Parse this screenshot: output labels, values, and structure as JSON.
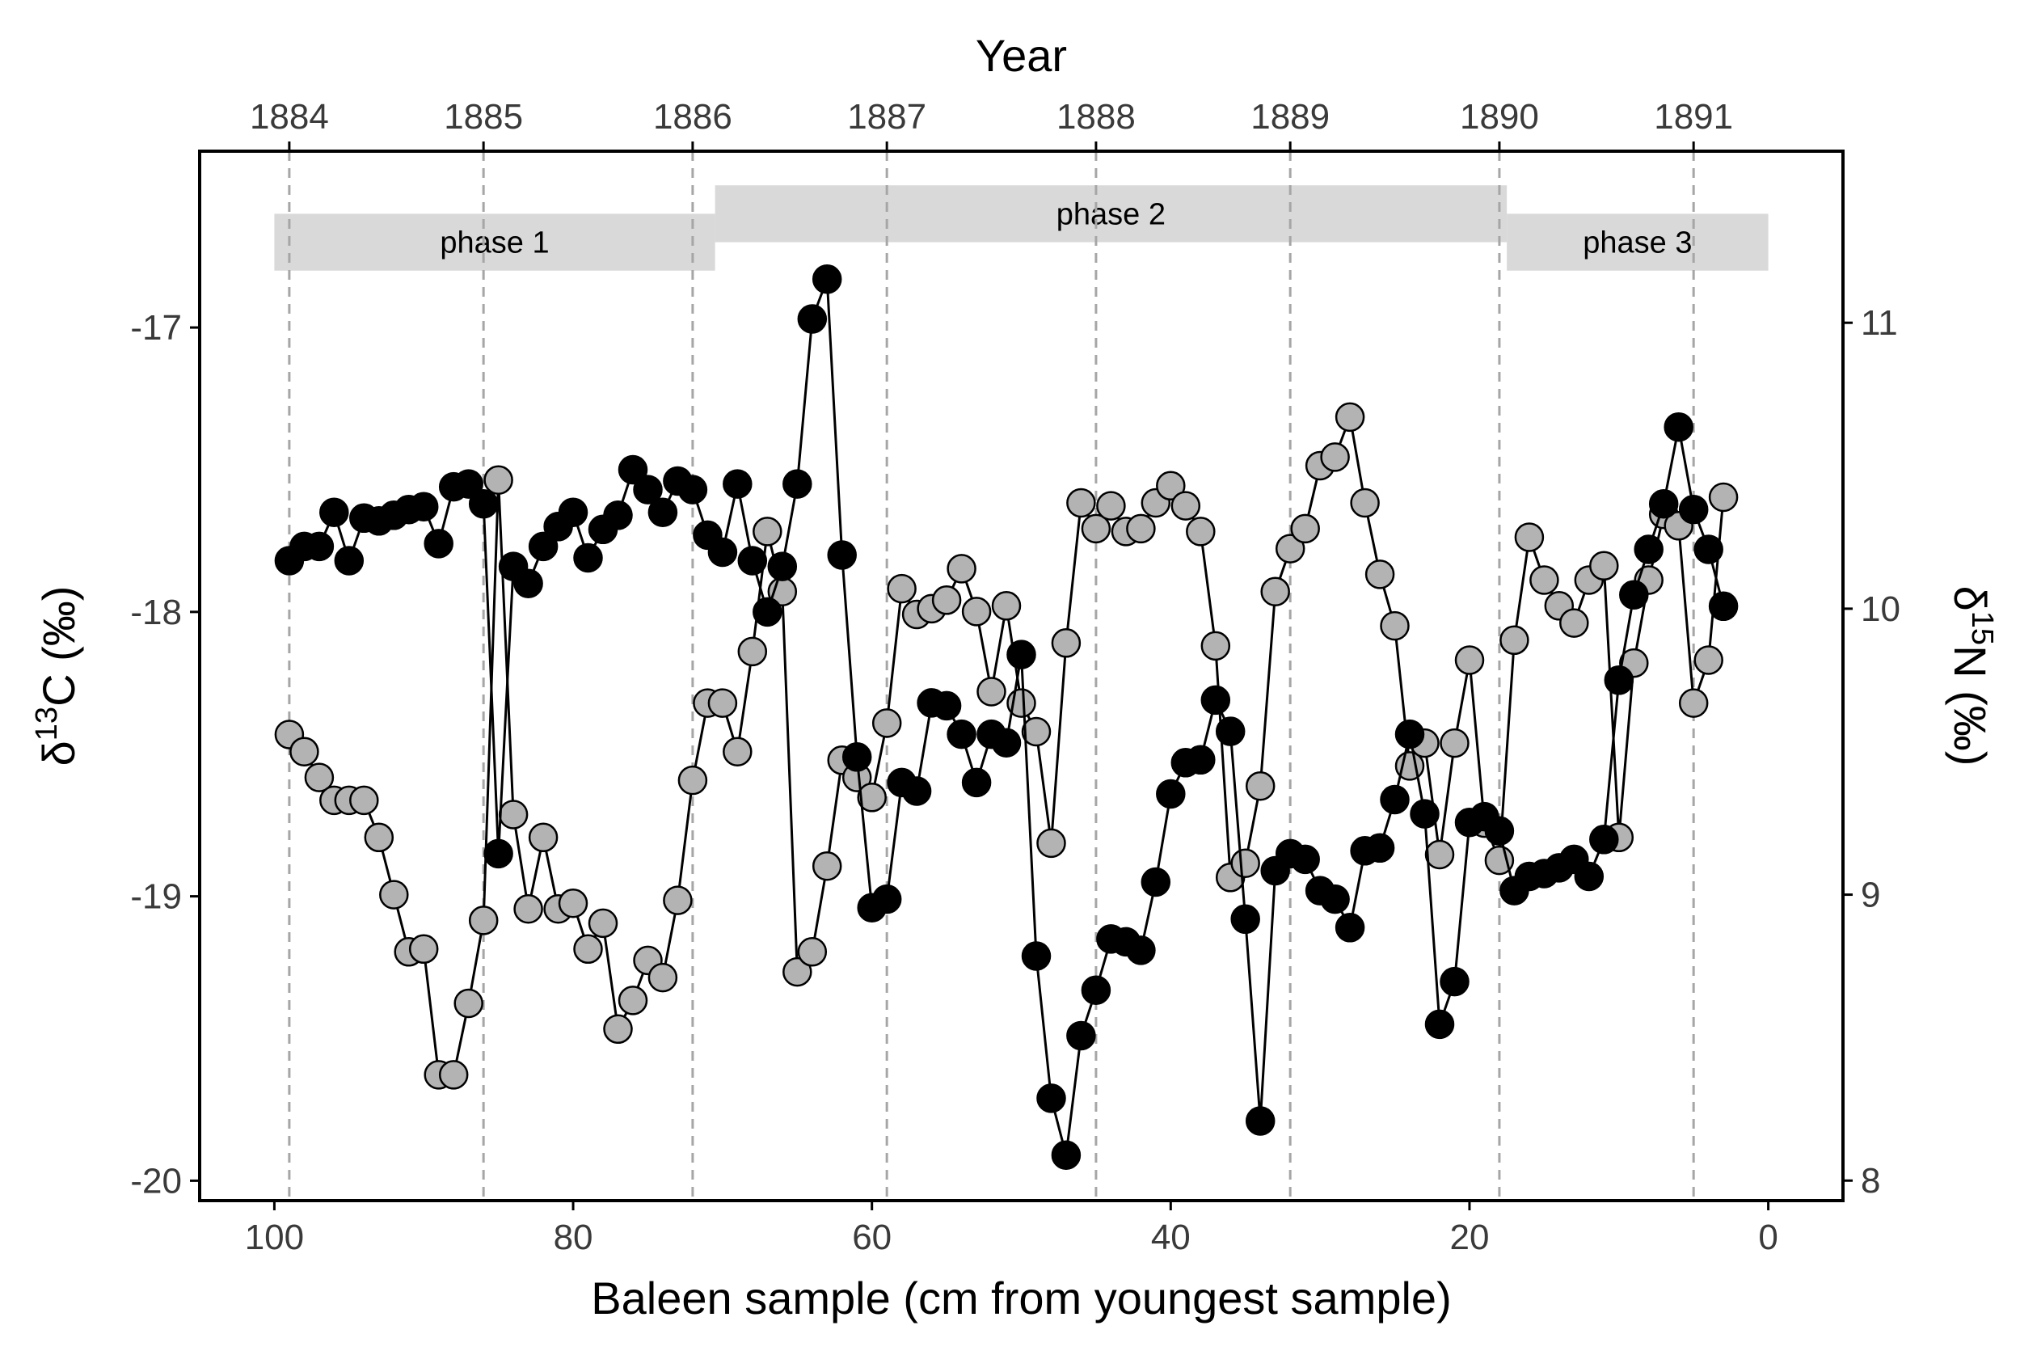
{
  "chart_data": {
    "type": "line",
    "xlabel": "Baleen sample (cm from youngest sample)",
    "x2label": "Year",
    "ylabel_left": {
      "base": "δ",
      "sup": "13",
      "rest": "C (‰)"
    },
    "ylabel_right": {
      "base": "δ",
      "sup": "15",
      "rest": "N (‰)"
    },
    "xlim": [
      105,
      -5
    ],
    "ylim_left": [
      -20.07,
      -16.38
    ],
    "ylim_right": [
      7.93,
      11.6
    ],
    "x_ticks": [
      100,
      80,
      60,
      40,
      20,
      0
    ],
    "x_tick_labels": [
      "100",
      "80",
      "60",
      "40",
      "20",
      "0"
    ],
    "y_left_ticks": [
      -17,
      -18,
      -19,
      -20
    ],
    "y_left_tick_labels": [
      "-17",
      "-18",
      "-19",
      "-20"
    ],
    "y_right_ticks": [
      11,
      10,
      9,
      8
    ],
    "y_right_tick_labels": [
      "11",
      "10",
      "9",
      "8"
    ],
    "year_ticks": [
      {
        "label": "1884",
        "x": 99
      },
      {
        "label": "1885",
        "x": 86
      },
      {
        "label": "1886",
        "x": 72
      },
      {
        "label": "1887",
        "x": 59
      },
      {
        "label": "1888",
        "x": 45
      },
      {
        "label": "1889",
        "x": 32
      },
      {
        "label": "1890",
        "x": 18
      },
      {
        "label": "1891",
        "x": 5
      }
    ],
    "phases": [
      {
        "label": "phase 1",
        "x_start": 100,
        "x_end": 70.5,
        "level": "low"
      },
      {
        "label": "phase 2",
        "x_start": 70.5,
        "x_end": 17.5,
        "level": "high"
      },
      {
        "label": "phase 3",
        "x_start": 17.5,
        "x_end": 0,
        "level": "low"
      }
    ],
    "grid": false,
    "series": [
      {
        "key": "d13C",
        "axis": "left",
        "fill": "#000000",
        "points": [
          [
            99,
            -17.82
          ],
          [
            98,
            -17.77
          ],
          [
            97,
            -17.77
          ],
          [
            96,
            -17.65
          ],
          [
            95,
            -17.82
          ],
          [
            94,
            -17.67
          ],
          [
            93,
            -17.68
          ],
          [
            92,
            -17.66
          ],
          [
            91,
            -17.64
          ],
          [
            90,
            -17.63
          ],
          [
            89,
            -17.76
          ],
          [
            88,
            -17.56
          ],
          [
            87,
            -17.55
          ],
          [
            86,
            -17.62
          ],
          [
            85,
            -18.85
          ],
          [
            84,
            -17.84
          ],
          [
            83,
            -17.9
          ],
          [
            82,
            -17.77
          ],
          [
            81,
            -17.7
          ],
          [
            80,
            -17.65
          ],
          [
            79,
            -17.81
          ],
          [
            78,
            -17.71
          ],
          [
            77,
            -17.66
          ],
          [
            76,
            -17.5
          ],
          [
            75,
            -17.57
          ],
          [
            74,
            -17.65
          ],
          [
            73,
            -17.54
          ],
          [
            72,
            -17.57
          ],
          [
            71,
            -17.73
          ],
          [
            70,
            -17.79
          ],
          [
            69,
            -17.55
          ],
          [
            68,
            -17.82
          ],
          [
            67,
            -18.0
          ],
          [
            66,
            -17.84
          ],
          [
            65,
            -17.55
          ],
          [
            64,
            -16.97
          ],
          [
            63,
            -16.83
          ],
          [
            62,
            -17.8
          ],
          [
            61,
            -18.51
          ],
          [
            60,
            -19.04
          ],
          [
            59,
            -19.01
          ],
          [
            58,
            -18.6
          ],
          [
            57,
            -18.63
          ],
          [
            56,
            -18.32
          ],
          [
            55,
            -18.33
          ],
          [
            54,
            -18.43
          ],
          [
            53,
            -18.6
          ],
          [
            52,
            -18.43
          ],
          [
            51,
            -18.46
          ],
          [
            50,
            -18.15
          ],
          [
            49,
            -19.21
          ],
          [
            48,
            -19.71
          ],
          [
            47,
            -19.91
          ],
          [
            46,
            -19.49
          ],
          [
            45,
            -19.33
          ],
          [
            44,
            -19.15
          ],
          [
            43,
            -19.16
          ],
          [
            42,
            -19.19
          ],
          [
            41,
            -18.95
          ],
          [
            40,
            -18.64
          ],
          [
            39,
            -18.53
          ],
          [
            38,
            -18.52
          ],
          [
            37,
            -18.31
          ],
          [
            36,
            -18.42
          ],
          [
            35,
            -19.08
          ],
          [
            34,
            -19.79
          ],
          [
            33,
            -18.91
          ],
          [
            32,
            -18.85
          ],
          [
            31,
            -18.87
          ],
          [
            30,
            -18.98
          ],
          [
            29,
            -19.01
          ],
          [
            28,
            -19.11
          ],
          [
            27,
            -18.84
          ],
          [
            26,
            -18.83
          ],
          [
            25,
            -18.66
          ],
          [
            24,
            -18.43
          ],
          [
            23,
            -18.71
          ],
          [
            22,
            -19.45
          ],
          [
            21,
            -19.3
          ],
          [
            20,
            -18.74
          ],
          [
            19,
            -18.72
          ],
          [
            18,
            -18.77
          ],
          [
            17,
            -18.98
          ],
          [
            16,
            -18.93
          ],
          [
            15,
            -18.92
          ],
          [
            14,
            -18.9
          ],
          [
            13,
            -18.87
          ],
          [
            12,
            -18.93
          ],
          [
            11,
            -18.8
          ],
          [
            10,
            -18.24
          ],
          [
            9,
            -17.94
          ],
          [
            8,
            -17.78
          ],
          [
            7,
            -17.62
          ],
          [
            6,
            -17.35
          ],
          [
            5,
            -17.64
          ],
          [
            4,
            -17.78
          ],
          [
            3,
            -17.98
          ]
        ]
      },
      {
        "key": "d15N",
        "axis": "right",
        "fill": "#b3b3b3",
        "points": [
          [
            99,
            9.56
          ],
          [
            98,
            9.5
          ],
          [
            97,
            9.41
          ],
          [
            96,
            9.33
          ],
          [
            95,
            9.33
          ],
          [
            94,
            9.33
          ],
          [
            93,
            9.2
          ],
          [
            92,
            9.0
          ],
          [
            91,
            8.8
          ],
          [
            90,
            8.81
          ],
          [
            89,
            8.37
          ],
          [
            88,
            8.37
          ],
          [
            87,
            8.62
          ],
          [
            86,
            8.91
          ],
          [
            85,
            10.45
          ],
          [
            84,
            9.28
          ],
          [
            83,
            8.95
          ],
          [
            82,
            9.2
          ],
          [
            81,
            8.95
          ],
          [
            80,
            8.97
          ],
          [
            79,
            8.81
          ],
          [
            78,
            8.9
          ],
          [
            77,
            8.53
          ],
          [
            76,
            8.63
          ],
          [
            75,
            8.77
          ],
          [
            74,
            8.71
          ],
          [
            73,
            8.98
          ],
          [
            72,
            9.4
          ],
          [
            71,
            9.67
          ],
          [
            70,
            9.67
          ],
          [
            69,
            9.5
          ],
          [
            68,
            9.85
          ],
          [
            67,
            10.27
          ],
          [
            66,
            10.06
          ],
          [
            65,
            8.73
          ],
          [
            64,
            8.8
          ],
          [
            63,
            9.1
          ],
          [
            62,
            9.47
          ],
          [
            61,
            9.41
          ],
          [
            60,
            9.34
          ],
          [
            59,
            9.6
          ],
          [
            58,
            10.07
          ],
          [
            57,
            9.98
          ],
          [
            56,
            10.0
          ],
          [
            55,
            10.03
          ],
          [
            54,
            10.14
          ],
          [
            53,
            9.99
          ],
          [
            52,
            9.71
          ],
          [
            51,
            10.01
          ],
          [
            50,
            9.67
          ],
          [
            49,
            9.57
          ],
          [
            48,
            9.18
          ],
          [
            47,
            9.88
          ],
          [
            46,
            10.37
          ],
          [
            45,
            10.28
          ],
          [
            44,
            10.36
          ],
          [
            43,
            10.27
          ],
          [
            42,
            10.28
          ],
          [
            41,
            10.37
          ],
          [
            40,
            10.43
          ],
          [
            39,
            10.36
          ],
          [
            38,
            10.27
          ],
          [
            37,
            9.87
          ],
          [
            36,
            9.06
          ],
          [
            35,
            9.11
          ],
          [
            34,
            9.38
          ],
          [
            33,
            10.06
          ],
          [
            32,
            10.21
          ],
          [
            31,
            10.28
          ],
          [
            30,
            10.5
          ],
          [
            29,
            10.53
          ],
          [
            28,
            10.67
          ],
          [
            27,
            10.37
          ],
          [
            26,
            10.12
          ],
          [
            25,
            9.94
          ],
          [
            24,
            9.45
          ],
          [
            23,
            9.53
          ],
          [
            22,
            9.14
          ],
          [
            21,
            9.53
          ],
          [
            20,
            9.82
          ],
          [
            19,
            9.25
          ],
          [
            18,
            9.12
          ],
          [
            17,
            9.89
          ],
          [
            16,
            10.25
          ],
          [
            15,
            10.1
          ],
          [
            14,
            10.01
          ],
          [
            13,
            9.95
          ],
          [
            12,
            10.1
          ],
          [
            11,
            10.15
          ],
          [
            10,
            9.2
          ],
          [
            9,
            9.81
          ],
          [
            8,
            10.1
          ],
          [
            7,
            10.33
          ],
          [
            6,
            10.29
          ],
          [
            5,
            9.67
          ],
          [
            4,
            9.82
          ],
          [
            3,
            10.39
          ]
        ]
      }
    ]
  }
}
